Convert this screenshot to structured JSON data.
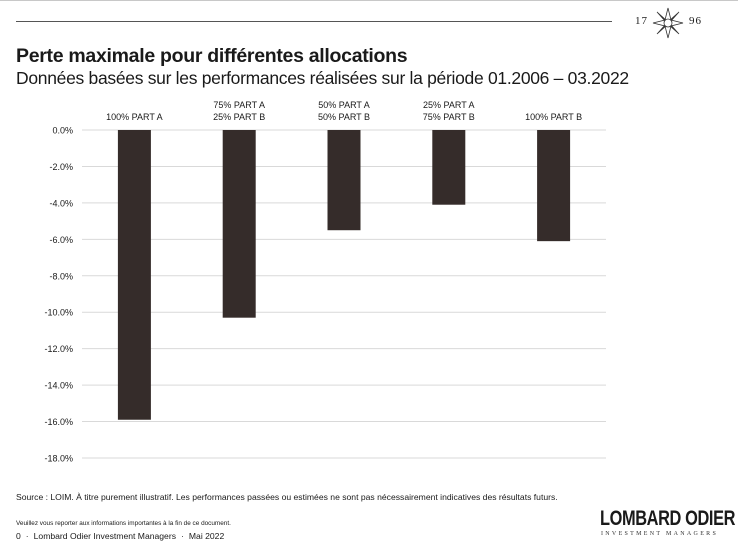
{
  "header": {
    "year_left": "17",
    "year_right": "96",
    "emblem_icon": "compass-star-icon"
  },
  "title": "Perte maximale pour différentes allocations",
  "subtitle": "Données basées sur les performances réalisées sur la période 01.2006 – 03.2022",
  "chart_data": {
    "type": "bar",
    "categories": [
      [
        "100% PART A"
      ],
      [
        "75% PART A",
        "25% PART B"
      ],
      [
        "50% PART A",
        "50% PART B"
      ],
      [
        "25% PART A",
        "75% PART B"
      ],
      [
        "100% PART B"
      ]
    ],
    "values": [
      -15.9,
      -10.3,
      -5.5,
      -4.1,
      -6.1
    ],
    "yticks": [
      "0.0%",
      "-2.0%",
      "-4.0%",
      "-6.0%",
      "-8.0%",
      "-10.0%",
      "-12.0%",
      "-14.0%",
      "-16.0%",
      "-18.0%"
    ],
    "ylim": [
      -18,
      0
    ],
    "grid": true,
    "bar_color": "#352c2a"
  },
  "source": "Source : LOIM. À titre purement illustratif. Les performances passées ou estimées ne sont pas nécessairement indicatives des résultats futurs.",
  "notice": "Veuillez vous reporter aux informations importantes à la fin de ce document.",
  "footer": {
    "page": "0",
    "company": "Lombard Odier Investment Managers",
    "date": "Mai 2022"
  },
  "logo": {
    "main": "LOMBARD ODIER",
    "sub": "INVESTMENT MANAGERS"
  }
}
